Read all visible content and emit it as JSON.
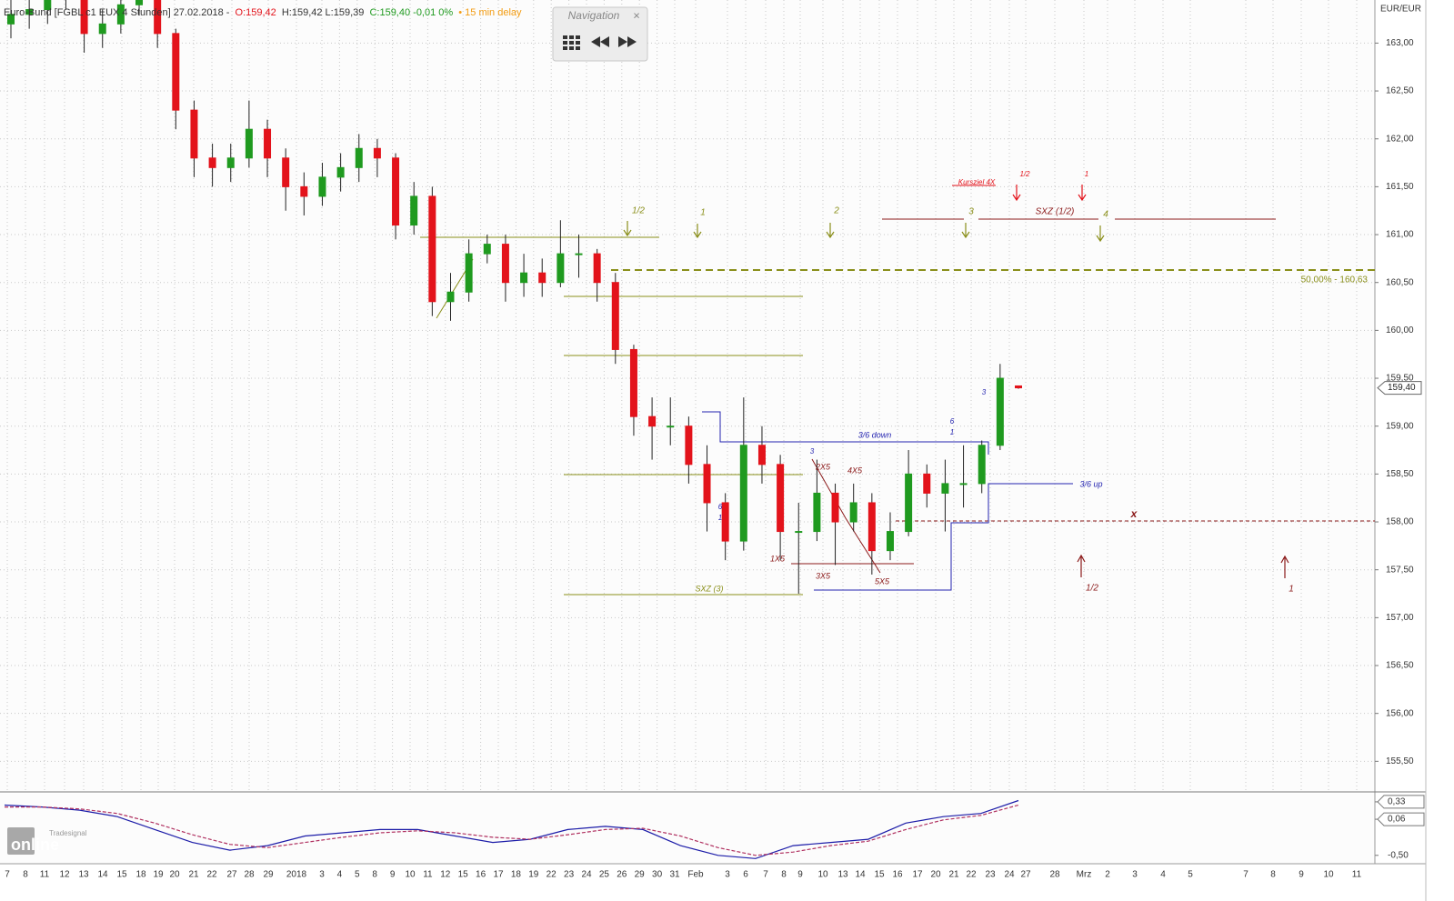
{
  "header": {
    "title": "Euro-Bund [FGBL c1 EUX 4 Stunden] 27.02.2018 -",
    "open": "O:159,42",
    "high_low": "H:159,42 L:159,39",
    "close": "C:159,40 -0,01 0%",
    "delay": "• 15 min delay"
  },
  "navigation": {
    "title": "Navigation",
    "close": "×"
  },
  "logo": {
    "brand": "Tradesignal",
    "name": "online"
  },
  "chart_data": [
    {
      "type": "candlestick",
      "ylabel": "EUR/EUR",
      "ylim": [
        155.19,
        163.45
      ],
      "yticks": [
        {
          "value": 163.0,
          "label": "163,00"
        },
        {
          "value": 162.5,
          "label": "162,50"
        },
        {
          "value": 162.0,
          "label": "162,00"
        },
        {
          "value": 161.5,
          "label": "161,50"
        },
        {
          "value": 161.0,
          "label": "161,00"
        },
        {
          "value": 160.5,
          "label": "160,50"
        },
        {
          "value": 160.0,
          "label": "160,00"
        },
        {
          "value": 159.5,
          "label": "159,50"
        },
        {
          "value": 159.0,
          "label": "159,00"
        },
        {
          "value": 158.5,
          "label": "158,50"
        },
        {
          "value": 158.0,
          "label": "158,00"
        },
        {
          "value": 157.5,
          "label": "157,50"
        },
        {
          "value": 157.0,
          "label": "157,00"
        },
        {
          "value": 156.5,
          "label": "156,50"
        },
        {
          "value": 156.0,
          "label": "156,00"
        },
        {
          "value": 155.5,
          "label": "155,50"
        }
      ],
      "grid": true,
      "up_color": "#1f9a1f",
      "down_color": "#e3131b",
      "xtick_labels": [
        "7",
        "8",
        "11",
        "12",
        "13",
        "14",
        "15",
        "18",
        "19",
        "20",
        "21",
        "22",
        "27",
        "28",
        "29",
        "2018",
        "3",
        "4",
        "5",
        "8",
        "9",
        "10",
        "11",
        "12",
        "15",
        "16",
        "17",
        "18",
        "19",
        "22",
        "23",
        "24",
        "25",
        "26",
        "29",
        "30",
        "31",
        "Feb",
        "3",
        "6",
        "7",
        "8",
        "9",
        "10",
        "13",
        "14",
        "15",
        "16",
        "17",
        "20",
        "21",
        "22",
        "23",
        "24",
        "27",
        "28",
        "Mrz",
        "2",
        "3",
        "4",
        "5",
        "7",
        "8",
        "9",
        "10",
        "11"
      ],
      "open": [
        163.2,
        163.3,
        163.35,
        163.5,
        163.5,
        163.1,
        163.2,
        163.4,
        163.5,
        163.1,
        162.3,
        161.8,
        161.7,
        161.8,
        162.1,
        161.8,
        161.5,
        161.4,
        161.6,
        161.7,
        161.9,
        161.8,
        161.1,
        161.4,
        160.3,
        160.4,
        160.8,
        160.9,
        160.5,
        160.6,
        160.5,
        160.8,
        160.8,
        160.5,
        159.8,
        159.1,
        159.0,
        159.0,
        158.6,
        158.2,
        157.8,
        158.8,
        158.6,
        157.9,
        157.9,
        158.3,
        158.0,
        158.2,
        157.7,
        157.9,
        158.5,
        158.3,
        158.4,
        158.4,
        158.8,
        159.42
      ],
      "high": [
        163.45,
        163.5,
        163.65,
        163.65,
        163.6,
        163.35,
        163.55,
        163.7,
        163.6,
        163.15,
        162.4,
        161.95,
        161.95,
        162.4,
        162.2,
        161.9,
        161.65,
        161.75,
        161.85,
        162.05,
        162.0,
        161.85,
        161.55,
        161.5,
        160.6,
        160.95,
        161.0,
        161.0,
        160.8,
        160.75,
        161.15,
        161.0,
        160.85,
        160.6,
        159.85,
        159.3,
        159.3,
        159.1,
        158.8,
        158.3,
        159.3,
        159.0,
        158.7,
        158.2,
        158.65,
        158.4,
        158.4,
        158.3,
        158.1,
        158.75,
        158.6,
        158.65,
        158.8,
        158.85,
        159.65,
        159.42
      ],
      "low": [
        163.05,
        163.15,
        163.2,
        163.35,
        162.9,
        162.95,
        163.1,
        163.3,
        162.95,
        162.1,
        161.6,
        161.5,
        161.55,
        161.7,
        161.6,
        161.25,
        161.2,
        161.3,
        161.45,
        161.55,
        161.6,
        160.95,
        161.0,
        160.15,
        160.1,
        160.3,
        160.7,
        160.3,
        160.35,
        160.35,
        160.45,
        160.55,
        160.3,
        159.65,
        158.9,
        158.65,
        158.8,
        158.4,
        157.9,
        157.6,
        157.7,
        158.4,
        157.6,
        157.25,
        157.8,
        157.55,
        157.9,
        157.45,
        157.6,
        157.85,
        158.15,
        157.9,
        158.15,
        158.3,
        158.75,
        159.39
      ],
      "close": [
        163.3,
        163.35,
        163.5,
        163.5,
        163.1,
        163.2,
        163.4,
        163.5,
        163.1,
        162.3,
        161.8,
        161.7,
        161.8,
        162.1,
        161.8,
        161.5,
        161.4,
        161.6,
        161.7,
        161.9,
        161.8,
        161.1,
        161.4,
        160.3,
        160.4,
        160.8,
        160.9,
        160.5,
        160.6,
        160.5,
        160.8,
        160.8,
        160.5,
        159.8,
        159.1,
        159.0,
        159.0,
        158.6,
        158.2,
        157.8,
        158.8,
        158.6,
        157.9,
        157.9,
        158.3,
        158.0,
        158.2,
        157.7,
        157.9,
        158.5,
        158.3,
        158.4,
        158.4,
        158.8,
        159.5,
        159.4
      ],
      "levels": [
        {
          "value": 160.63,
          "label": "50,00% - 160,63",
          "color": "#8a8f1a"
        }
      ],
      "last_price": {
        "value": 159.4,
        "label": "159,40"
      },
      "annotations": [
        "1/2",
        "1",
        "2",
        "3",
        "4",
        "SXZ (1/2)",
        "Kursziel 4X",
        "1/2",
        "1",
        "3/6 down",
        "3/6 up",
        "SXZ (3)",
        "1X5",
        "2X5",
        "4X5",
        "3X5",
        "5X5",
        "x",
        "1/2",
        "1",
        "3",
        "6",
        "1",
        "6",
        "1",
        "3"
      ]
    },
    {
      "type": "line",
      "ylim": [
        -0.63,
        0.47
      ],
      "yticks": [
        {
          "value": 0.33,
          "label": "0,33"
        },
        {
          "value": 0.06,
          "label": "0,06"
        },
        {
          "value": -0.5,
          "label": "-0,50"
        }
      ],
      "series": [
        {
          "color": "#1c1ca8",
          "values": [
            0.28,
            0.25,
            0.2,
            0.1,
            -0.1,
            -0.3,
            -0.42,
            -0.35,
            -0.2,
            -0.15,
            -0.1,
            -0.1,
            -0.2,
            -0.3,
            -0.25,
            -0.1,
            -0.05,
            -0.1,
            -0.35,
            -0.5,
            -0.55,
            -0.35,
            -0.3,
            -0.25,
            0.0,
            0.1,
            0.15,
            0.35
          ]
        },
        {
          "color": "#b03060",
          "values": [
            0.25,
            0.25,
            0.22,
            0.15,
            0.0,
            -0.18,
            -0.33,
            -0.38,
            -0.3,
            -0.22,
            -0.15,
            -0.12,
            -0.15,
            -0.22,
            -0.25,
            -0.18,
            -0.1,
            -0.08,
            -0.2,
            -0.38,
            -0.5,
            -0.45,
            -0.35,
            -0.28,
            -0.1,
            0.05,
            0.12,
            0.28
          ]
        }
      ]
    }
  ]
}
